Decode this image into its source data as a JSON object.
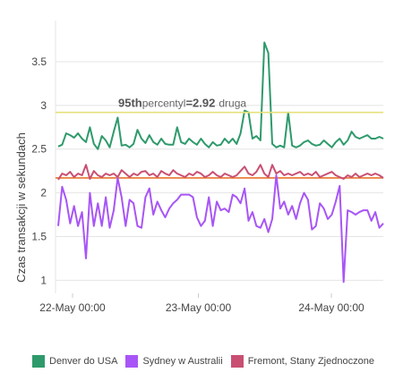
{
  "chart_data": {
    "type": "line",
    "ylabel": "Czas transakcji w sekundach",
    "xlabel": "",
    "x_ticks": [
      "22-May 00:00",
      "23-May 00:00",
      "24-May 00:00"
    ],
    "y_ticks": [
      "1",
      "1.5",
      "2",
      "2.5",
      "3",
      "3.5"
    ],
    "ylim": [
      0.85,
      3.95
    ],
    "grid": "horizontal",
    "legend_position": "bottom",
    "annotation": {
      "label_bold": "95th",
      "label_mid": "percentyl",
      "value": "=2.92",
      "unit": "druga",
      "y": 2.92
    },
    "reference_line_y": 2.17,
    "series": [
      {
        "name": "Denver do USA",
        "color": "#2e9a6b",
        "values": [
          2.53,
          2.55,
          2.68,
          2.66,
          2.63,
          2.68,
          2.62,
          2.58,
          2.75,
          2.56,
          2.5,
          2.65,
          2.6,
          2.52,
          2.7,
          2.86,
          2.54,
          2.55,
          2.52,
          2.56,
          2.72,
          2.62,
          2.57,
          2.66,
          2.58,
          2.55,
          2.62,
          2.56,
          2.55,
          2.55,
          2.75,
          2.58,
          2.56,
          2.62,
          2.58,
          2.55,
          2.62,
          2.56,
          2.52,
          2.58,
          2.54,
          2.55,
          2.62,
          2.57,
          2.62,
          2.56,
          2.68,
          2.94,
          2.92,
          2.62,
          2.65,
          2.6,
          3.72,
          3.6,
          2.56,
          2.52,
          2.54,
          2.52,
          2.92,
          2.54,
          2.52,
          2.54,
          2.58,
          2.6,
          2.56,
          2.54,
          2.55,
          2.6,
          2.56,
          2.52,
          2.58,
          2.62,
          2.55,
          2.6,
          2.7,
          2.64,
          2.62,
          2.64,
          2.66,
          2.62,
          2.62,
          2.64,
          2.62
        ]
      },
      {
        "name": "Sydney w Australii",
        "color": "#a855f7",
        "values": [
          1.62,
          2.07,
          1.92,
          1.65,
          1.85,
          1.62,
          1.78,
          1.25,
          2.0,
          1.62,
          1.88,
          1.62,
          1.95,
          1.6,
          1.8,
          2.17,
          1.95,
          1.62,
          1.92,
          1.88,
          1.62,
          1.6,
          1.95,
          2.05,
          1.75,
          1.9,
          1.8,
          1.72,
          1.82,
          1.88,
          1.92,
          1.98,
          1.98,
          1.98,
          1.95,
          1.72,
          1.62,
          1.68,
          1.95,
          1.62,
          1.9,
          1.8,
          1.82,
          1.78,
          1.98,
          1.95,
          1.88,
          2.05,
          1.68,
          1.78,
          1.62,
          1.6,
          1.7,
          1.55,
          1.7,
          2.2,
          1.82,
          1.9,
          1.75,
          1.85,
          1.7,
          1.88,
          2.0,
          1.92,
          1.58,
          1.62,
          1.88,
          1.82,
          1.7,
          1.75,
          1.9,
          2.08,
          0.98,
          1.8,
          1.78,
          1.75,
          1.78,
          1.8,
          1.8,
          1.68,
          1.78,
          1.6,
          1.65
        ]
      },
      {
        "name": "Fremont, Stany Zjednoczone",
        "color": "#c94f72",
        "values": [
          2.15,
          2.22,
          2.2,
          2.24,
          2.18,
          2.22,
          2.2,
          2.32,
          2.16,
          2.25,
          2.2,
          2.18,
          2.22,
          2.2,
          2.22,
          2.18,
          2.26,
          2.22,
          2.18,
          2.22,
          2.2,
          2.24,
          2.25,
          2.2,
          2.22,
          2.18,
          2.25,
          2.22,
          2.2,
          2.26,
          2.22,
          2.2,
          2.18,
          2.22,
          2.2,
          2.24,
          2.22,
          2.18,
          2.2,
          2.24,
          2.2,
          2.18,
          2.22,
          2.2,
          2.18,
          2.2,
          2.25,
          2.3,
          2.22,
          2.2,
          2.24,
          2.32,
          2.22,
          2.18,
          2.32,
          2.22,
          2.25,
          2.2,
          2.22,
          2.2,
          2.22,
          2.24,
          2.2,
          2.22,
          2.2,
          2.24,
          2.18,
          2.2,
          2.22,
          2.24,
          2.2,
          2.18,
          2.16,
          2.2,
          2.18,
          2.22,
          2.18,
          2.2,
          2.22,
          2.2,
          2.22,
          2.2,
          2.17
        ]
      }
    ]
  }
}
